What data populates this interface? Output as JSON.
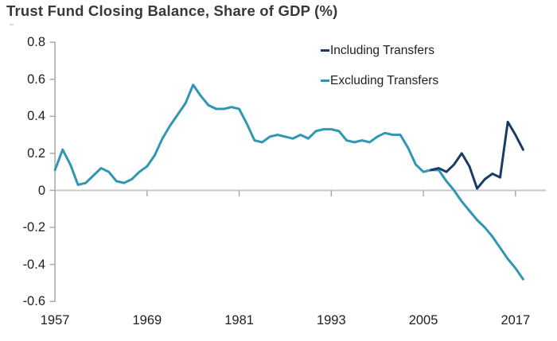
{
  "chart_data": {
    "type": "line",
    "title": "Trust Fund Closing Balance, Share of GDP (%)",
    "xlabel": "",
    "ylabel": "",
    "ylim": [
      -0.6,
      0.8
    ],
    "xlim": [
      1957,
      2019
    ],
    "grid": "zero-line-only",
    "legend_position": "top-right",
    "colors": {
      "including_transfers": "#1b3b66",
      "excluding_transfers": "#2f97b3",
      "zero_gridline": "#c9c9c9",
      "axis": "#a6a6a6",
      "tick_text": "#1f1f1f",
      "title_text": "#383838"
    },
    "y_ticks": [
      {
        "label": "0.8",
        "value": 0.8
      },
      {
        "label": "0.6",
        "value": 0.6
      },
      {
        "label": "0.4",
        "value": 0.4
      },
      {
        "label": "0.2",
        "value": 0.2
      },
      {
        "label": "0",
        "value": 0
      },
      {
        "label": "-0.2",
        "value": -0.2
      },
      {
        "label": "-0.4",
        "value": -0.4
      },
      {
        "label": "-0.6",
        "value": -0.6
      }
    ],
    "x_ticks": [
      {
        "label": "1957",
        "year": 1957
      },
      {
        "label": "1969",
        "year": 1969
      },
      {
        "label": "1981",
        "year": 1981
      },
      {
        "label": "1993",
        "year": 1993
      },
      {
        "label": "2005",
        "year": 2005
      },
      {
        "label": "2017",
        "year": 2017
      }
    ],
    "series": [
      {
        "name": "Including Transfers",
        "color": "#1b3b66",
        "start_year": 2006,
        "values": [
          0.11,
          0.12,
          0.1,
          0.14,
          0.2,
          0.13,
          0.01,
          0.06,
          0.09,
          0.07,
          0.37,
          0.3,
          0.22
        ]
      },
      {
        "name": "Excluding Transfers",
        "color": "#2f97b3",
        "start_year": 1957,
        "values": [
          0.11,
          0.22,
          0.14,
          0.03,
          0.04,
          0.08,
          0.12,
          0.1,
          0.05,
          0.04,
          0.06,
          0.1,
          0.13,
          0.19,
          0.28,
          0.35,
          0.41,
          0.47,
          0.57,
          0.51,
          0.46,
          0.44,
          0.44,
          0.45,
          0.44,
          0.36,
          0.27,
          0.26,
          0.29,
          0.3,
          0.29,
          0.28,
          0.3,
          0.28,
          0.32,
          0.33,
          0.33,
          0.32,
          0.27,
          0.26,
          0.27,
          0.26,
          0.29,
          0.31,
          0.3,
          0.3,
          0.23,
          0.14,
          0.1,
          0.11,
          0.11,
          0.05,
          0.0,
          -0.06,
          -0.11,
          -0.16,
          -0.2,
          -0.25,
          -0.31,
          -0.37,
          -0.42,
          -0.48
        ]
      }
    ]
  }
}
